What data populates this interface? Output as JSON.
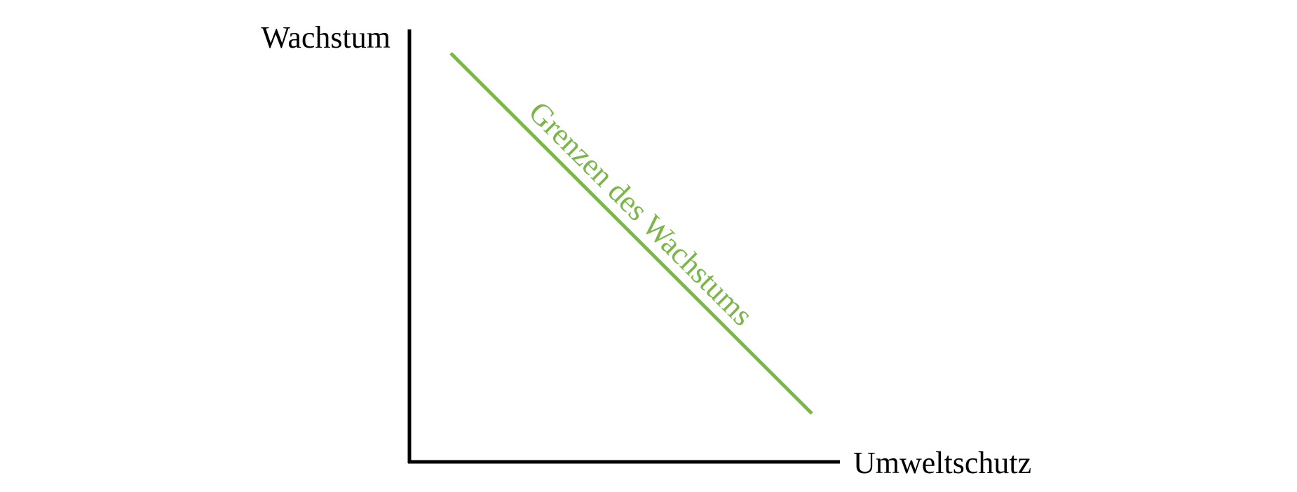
{
  "diagram": {
    "y_axis_label": "Wachstum",
    "x_axis_label": "Umweltschutz",
    "curve_label": "Grenzen des Wachstums",
    "colors": {
      "axis": "#000000",
      "curve": "#7ab648",
      "background": "#ffffff"
    }
  }
}
